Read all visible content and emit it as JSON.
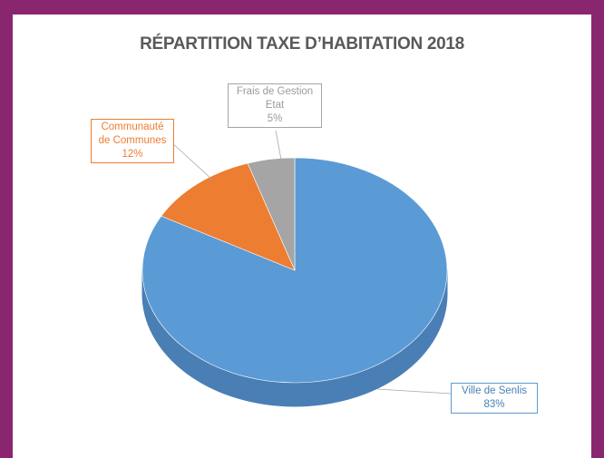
{
  "chart_data": {
    "type": "pie",
    "title": "RÉPARTITION TAXE D’HABITATION 2018",
    "slices": [
      {
        "label_lines": [
          "Ville de Senlis"
        ],
        "value": 83,
        "value_label": "83%",
        "color": "#5b9bd5",
        "side_color": "#4a7fb5"
      },
      {
        "label_lines": [
          "Communauté",
          "de Communes"
        ],
        "value": 12,
        "value_label": "12%",
        "color": "#ed7d31",
        "side_color": "#c8652a"
      },
      {
        "label_lines": [
          "Frais de Gestion",
          "Etat"
        ],
        "value": 5,
        "value_label": "5%",
        "color": "#a5a5a5",
        "side_color": "#8a8a8a"
      }
    ],
    "legend": "none",
    "style": "3d-pie"
  },
  "colors": {
    "frame": "#8a2670",
    "title": "#595959"
  }
}
